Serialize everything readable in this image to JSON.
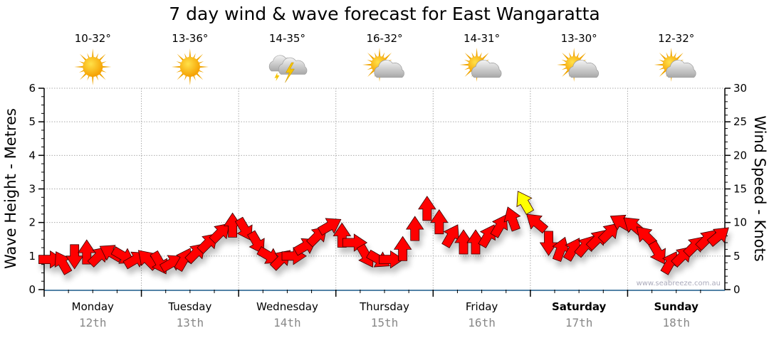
{
  "title": "7 day wind & wave forecast for East Wangaratta",
  "watermark": "www.seabreeze.com.au",
  "days": [
    {
      "name": "Monday",
      "date": "12th",
      "temps": "10-32°",
      "icon": "sunny-icon",
      "bold": false
    },
    {
      "name": "Tuesday",
      "date": "13th",
      "temps": "13-36°",
      "icon": "sunny-icon",
      "bold": false
    },
    {
      "name": "Wednesday",
      "date": "14th",
      "temps": "14-35°",
      "icon": "thunderstorm-icon",
      "bold": false
    },
    {
      "name": "Thursday",
      "date": "15th",
      "temps": "16-32°",
      "icon": "partly-cloudy-icon",
      "bold": false
    },
    {
      "name": "Friday",
      "date": "16th",
      "temps": "14-31°",
      "icon": "partly-cloudy-icon",
      "bold": false
    },
    {
      "name": "Saturday",
      "date": "17th",
      "temps": "13-30°",
      "icon": "partly-cloudy-icon",
      "bold": true
    },
    {
      "name": "Sunday",
      "date": "18th",
      "temps": "12-32°",
      "icon": "partly-cloudy-icon",
      "bold": true
    }
  ],
  "chart_data": {
    "type": "scatter",
    "title": "7 day wind & wave forecast for East Wangaratta",
    "ylabel_left": "Wave Height - Metres",
    "ylabel_right": "Wind Speed - Knots",
    "ylim_left": [
      0,
      6
    ],
    "ylim_right": [
      0,
      30
    ],
    "yticks_left": [
      "0",
      "1",
      "2",
      "3",
      "4",
      "5",
      "6"
    ],
    "yticks_right": [
      "0",
      "5",
      "10",
      "15",
      "20",
      "25",
      "30"
    ],
    "grid": true,
    "interval_hours": 3,
    "colors": {
      "normal": "#ff0000",
      "strong": "#ffff00"
    },
    "strong_threshold_knots": 13,
    "wind_knots": [
      4.5,
      4,
      5,
      5.5,
      5,
      5.5,
      5,
      4.5,
      4.5,
      4,
      4,
      4.5,
      5.5,
      7,
      8.5,
      9.5,
      9,
      7,
      5,
      4.5,
      5,
      6.5,
      8,
      9.5,
      8,
      7,
      5,
      4.5,
      4.5,
      6,
      9,
      12,
      10,
      8,
      7,
      7,
      8,
      9.5,
      10.5,
      13,
      10,
      7,
      6,
      6,
      6.5,
      7.5,
      8.5,
      10,
      9.5,
      8,
      5.5,
      4,
      5,
      6.5,
      7.5,
      8
    ],
    "wind_heading_deg": [
      90,
      -30,
      180,
      0,
      45,
      -60,
      120,
      60,
      -45,
      150,
      60,
      30,
      45,
      45,
      45,
      0,
      150,
      150,
      120,
      45,
      90,
      60,
      45,
      60,
      0,
      90,
      150,
      120,
      90,
      0,
      0,
      0,
      0,
      30,
      0,
      0,
      30,
      30,
      -20,
      -30,
      -50,
      180,
      20,
      30,
      40,
      45,
      45,
      -60,
      -50,
      -45,
      150,
      30,
      45,
      45,
      45,
      50
    ]
  }
}
